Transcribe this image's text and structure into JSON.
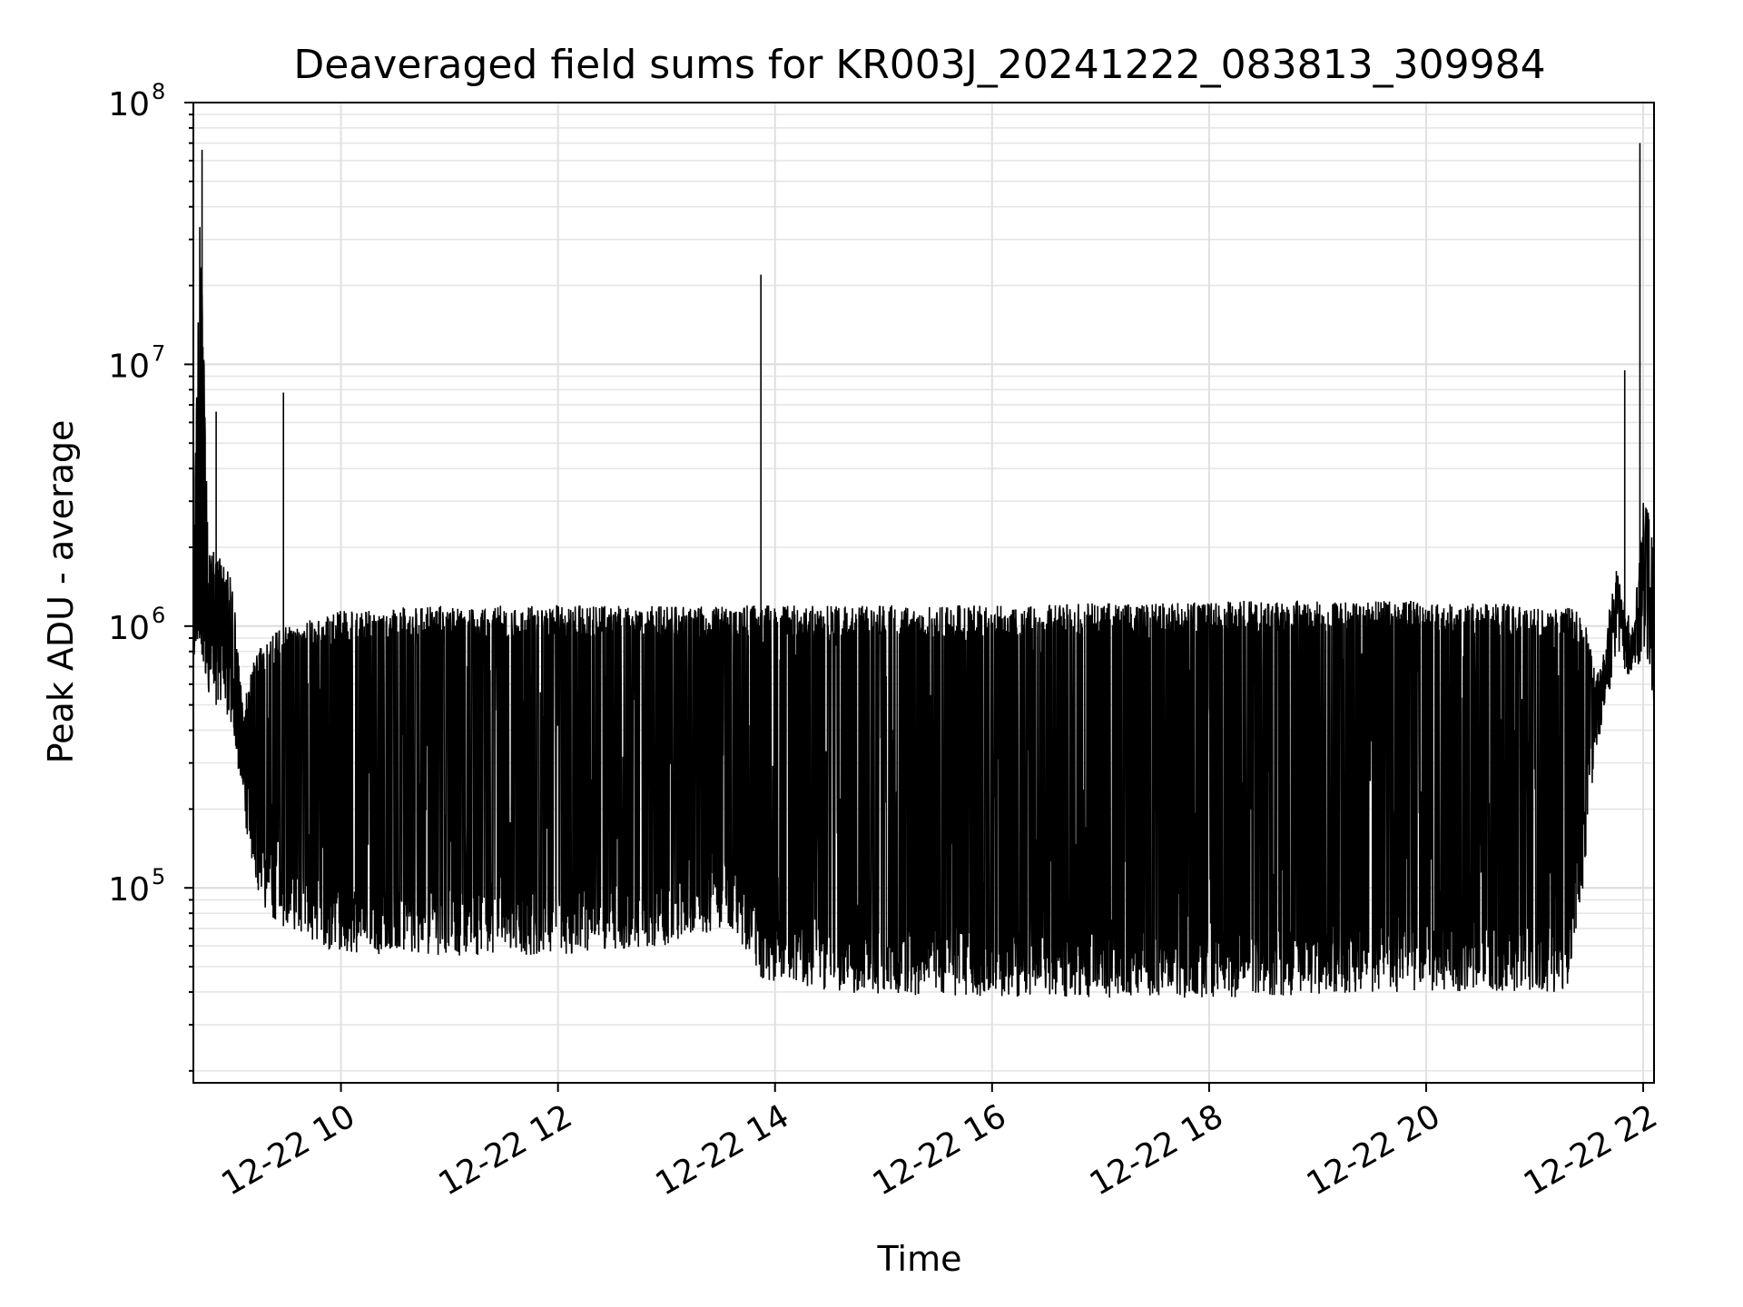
{
  "chart_data": {
    "type": "line",
    "title": "Deaveraged field sums for KR003J_20241222_083813_309984",
    "xlabel": "Time",
    "ylabel": "Peak ADU - average",
    "x_units": "hours on 2024-12-22",
    "xlim": [
      8.64,
      22.1
    ],
    "ylim": [
      18000,
      100000000
    ],
    "y_scale": "log",
    "grid": true,
    "grid_minor": true,
    "legend": false,
    "x_ticks": [
      10,
      12,
      14,
      16,
      18,
      20,
      22
    ],
    "x_tick_labels": [
      "12-22 10",
      "12-22 12",
      "12-22 14",
      "12-22 16",
      "12-22 18",
      "12-22 20",
      "12-22 22"
    ],
    "y_ticks": [
      {
        "value": 100000,
        "base": "10",
        "exp": "5"
      },
      {
        "value": 1000000,
        "base": "10",
        "exp": "6"
      },
      {
        "value": 10000000,
        "base": "10",
        "exp": "7"
      },
      {
        "value": 100000000,
        "base": "10",
        "exp": "8"
      }
    ],
    "line_color": "#000000",
    "spikes": [
      {
        "x": 8.72,
        "y": 66000000
      },
      {
        "x": 8.85,
        "y": 6600000
      },
      {
        "x": 9.47,
        "y": 7800000
      },
      {
        "x": 13.87,
        "y": 22000000
      },
      {
        "x": 21.83,
        "y": 9500000
      },
      {
        "x": 21.97,
        "y": 70000000
      }
    ],
    "envelope": [
      {
        "x": 8.64,
        "min": 700000,
        "max": 1500000
      },
      {
        "x": 8.7,
        "min": 900000,
        "max": 45000000
      },
      {
        "x": 8.78,
        "min": 500000,
        "max": 1900000
      },
      {
        "x": 8.9,
        "min": 500000,
        "max": 2000000
      },
      {
        "x": 9.0,
        "min": 400000,
        "max": 1500000
      },
      {
        "x": 9.1,
        "min": 200000,
        "max": 500000
      },
      {
        "x": 9.2,
        "min": 100000,
        "max": 800000
      },
      {
        "x": 9.3,
        "min": 80000,
        "max": 900000
      },
      {
        "x": 9.5,
        "min": 70000,
        "max": 1000000
      },
      {
        "x": 10.0,
        "min": 55000,
        "max": 1150000
      },
      {
        "x": 11.0,
        "min": 55000,
        "max": 1200000
      },
      {
        "x": 12.0,
        "min": 55000,
        "max": 1200000
      },
      {
        "x": 13.0,
        "min": 60000,
        "max": 1200000
      },
      {
        "x": 13.6,
        "min": 70000,
        "max": 1200000
      },
      {
        "x": 13.88,
        "min": 45000,
        "max": 1200000
      },
      {
        "x": 14.5,
        "min": 40000,
        "max": 1200000
      },
      {
        "x": 16.0,
        "min": 38000,
        "max": 1200000
      },
      {
        "x": 18.0,
        "min": 38000,
        "max": 1250000
      },
      {
        "x": 20.0,
        "min": 40000,
        "max": 1250000
      },
      {
        "x": 21.3,
        "min": 40000,
        "max": 1200000
      },
      {
        "x": 21.45,
        "min": 100000,
        "max": 1100000
      },
      {
        "x": 21.55,
        "min": 300000,
        "max": 700000
      },
      {
        "x": 21.65,
        "min": 450000,
        "max": 900000
      },
      {
        "x": 21.75,
        "min": 800000,
        "max": 1800000
      },
      {
        "x": 21.9,
        "min": 600000,
        "max": 900000
      },
      {
        "x": 22.0,
        "min": 800000,
        "max": 3000000
      },
      {
        "x": 22.1,
        "min": 500000,
        "max": 2500000
      }
    ]
  }
}
